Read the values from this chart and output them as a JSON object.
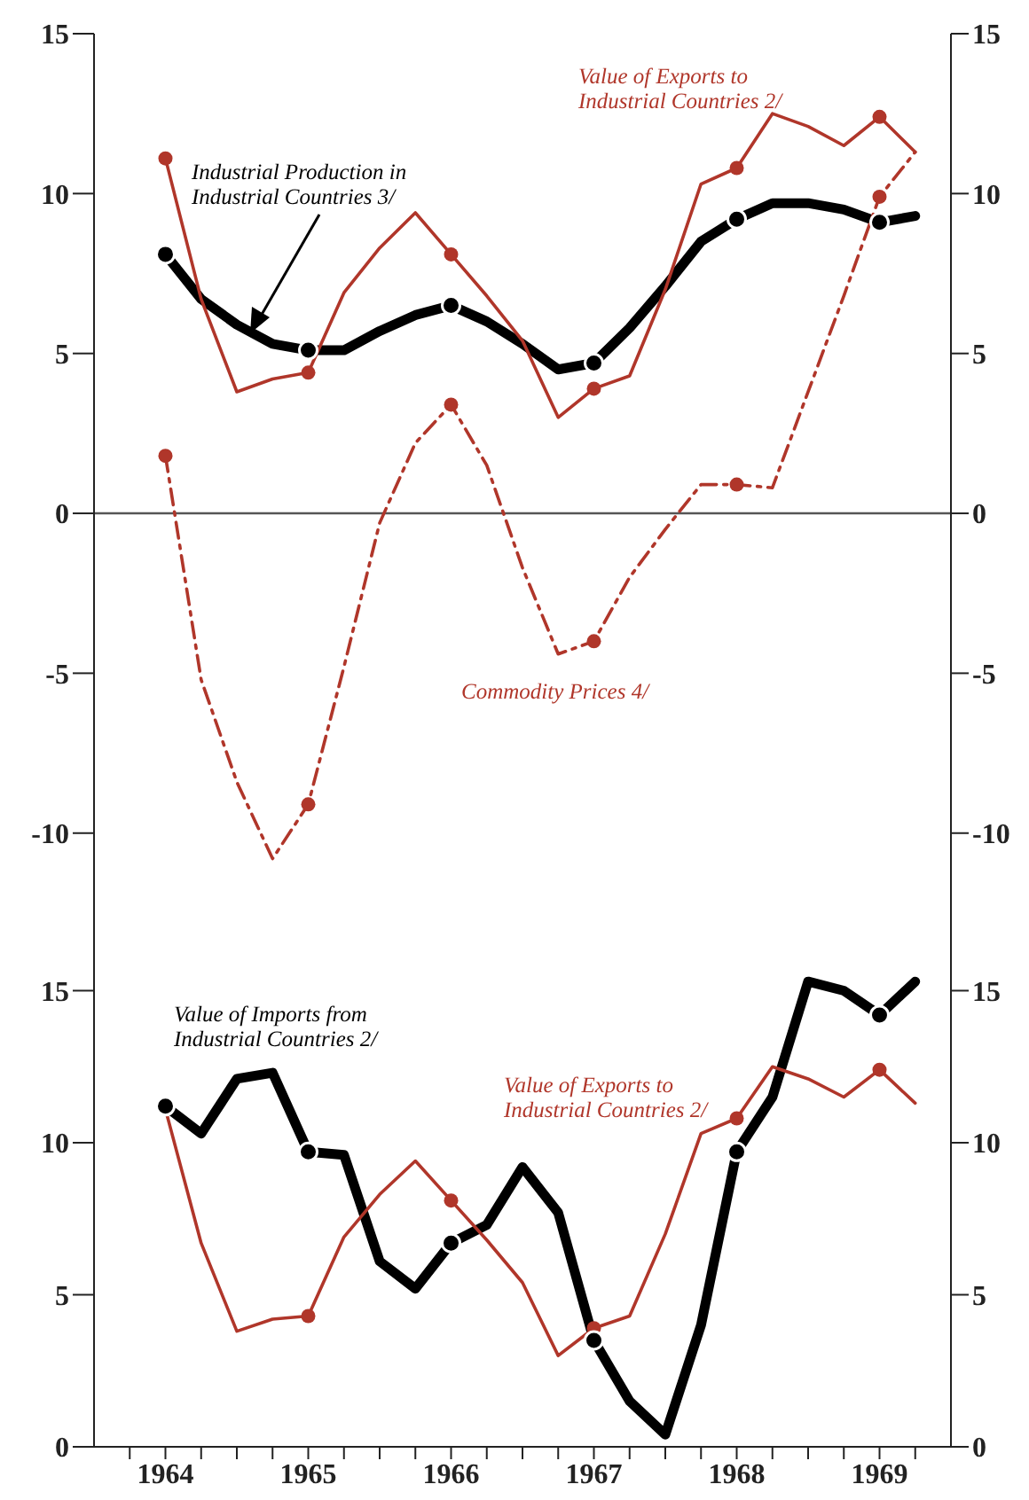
{
  "chart_data": [
    {
      "type": "line",
      "x": [
        1964,
        1964.25,
        1964.5,
        1964.75,
        1965,
        1965.25,
        1965.5,
        1965.75,
        1966,
        1966.25,
        1966.5,
        1966.75,
        1967,
        1967.25,
        1967.5,
        1967.75,
        1968,
        1968.25,
        1968.5,
        1968.75,
        1969,
        1969.25
      ],
      "series": [
        {
          "name": "Industrial Production in Industrial Countries 3/",
          "color": "#000000",
          "values": [
            8.1,
            6.7,
            5.9,
            5.3,
            5.1,
            5.1,
            5.7,
            6.2,
            6.5,
            6.0,
            5.3,
            4.5,
            4.7,
            5.8,
            7.1,
            8.5,
            9.2,
            9.7,
            9.7,
            9.5,
            9.1,
            9.3
          ]
        },
        {
          "name": "Value of Exports to Industrial Countries 2/",
          "color": "#b0362a",
          "values": [
            11.1,
            6.7,
            3.8,
            4.2,
            4.4,
            6.9,
            8.3,
            9.4,
            8.1,
            6.8,
            5.4,
            3.0,
            3.9,
            4.3,
            7.0,
            10.3,
            10.8,
            12.5,
            12.1,
            11.5,
            12.4,
            11.3
          ]
        },
        {
          "name": "Commodity Prices 4/",
          "color": "#b0362a",
          "line_style": "dashed",
          "values": [
            1.8,
            -5.2,
            -8.4,
            -10.8,
            -9.1,
            -4.8,
            -0.3,
            2.2,
            3.4,
            1.5,
            -1.7,
            -4.4,
            -4.0,
            -2.0,
            -0.5,
            0.9,
            0.9,
            0.8,
            3.8,
            6.8,
            9.9,
            11.3
          ]
        },
        {
          "type": "scatter",
          "color": "#000000",
          "marker": "circle",
          "x": [
            1964,
            1965,
            1966,
            1967,
            1968,
            1969
          ],
          "values": [
            8.1,
            5.1,
            6.5,
            4.7,
            9.2,
            9.1
          ]
        },
        {
          "type": "scatter",
          "color": "#b0362a",
          "marker": "circle",
          "x": [
            1964,
            1965,
            1966,
            1967,
            1968,
            1969
          ],
          "values": [
            11.1,
            4.4,
            8.1,
            3.9,
            10.8,
            12.4
          ]
        },
        {
          "type": "scatter",
          "color": "#b0362a",
          "marker": "circle",
          "x": [
            1964,
            1965,
            1966,
            1967,
            1968,
            1969
          ],
          "values": [
            1.8,
            -9.1,
            3.4,
            -4.0,
            0.9,
            9.9
          ]
        }
      ],
      "xlim": [
        1963.5,
        1969.5
      ],
      "ylim": [
        -13.5,
        15
      ],
      "yticks": [
        -10,
        -5,
        0,
        5,
        10,
        15
      ],
      "y2lim": [
        -13.5,
        15
      ],
      "y2ticks": [
        -10,
        -5,
        0,
        5,
        10,
        15
      ],
      "ref_lines": [
        {
          "axis": "y",
          "value": 0,
          "color": "#555555"
        }
      ],
      "line_style": "solid",
      "tick_labels": "y"
    },
    {
      "type": "line",
      "x": [
        1964,
        1964.25,
        1964.5,
        1964.75,
        1965,
        1965.25,
        1965.5,
        1965.75,
        1966,
        1966.25,
        1966.5,
        1966.75,
        1967,
        1967.25,
        1967.5,
        1967.75,
        1968,
        1968.25,
        1968.5,
        1968.75,
        1969,
        1969.25
      ],
      "series": [
        {
          "name": "Value of Imports from Industrial Countries 2/",
          "color": "#000000",
          "values": [
            11.2,
            10.3,
            12.1,
            12.3,
            9.7,
            9.6,
            6.1,
            5.2,
            6.7,
            7.3,
            9.2,
            7.7,
            3.5,
            1.5,
            0.4,
            4.0,
            9.7,
            11.5,
            15.3,
            15.0,
            14.2,
            15.3
          ]
        },
        {
          "name": "Value of Exports to Industrial Countries 2/",
          "color": "#b0362a",
          "values": [
            11.1,
            6.7,
            3.8,
            4.2,
            4.3,
            6.9,
            8.3,
            9.4,
            8.1,
            6.8,
            5.4,
            3.0,
            3.9,
            4.3,
            7.0,
            10.3,
            10.8,
            12.5,
            12.1,
            11.5,
            12.4,
            11.3
          ]
        },
        {
          "type": "scatter",
          "color": "#b0362a",
          "marker": "circle",
          "x": [
            1965,
            1966,
            1967,
            1968,
            1969
          ],
          "values": [
            4.3,
            8.1,
            3.9,
            10.8,
            12.4
          ]
        },
        {
          "type": "scatter",
          "color": "#000000",
          "marker": "circle",
          "x": [
            1964,
            1965,
            1966,
            1967,
            1968,
            1969
          ],
          "values": [
            11.2,
            9.7,
            6.7,
            3.5,
            9.7,
            14.2
          ]
        }
      ],
      "xlim": [
        1963.5,
        1969.5
      ],
      "xticks": [
        {
          "value": 1963.75,
          "label": null
        },
        1964,
        {
          "value": 1964.25,
          "label": null
        },
        {
          "value": 1964.5,
          "label": null
        },
        {
          "value": 1964.75,
          "label": null
        },
        1965,
        {
          "value": 1965.25,
          "label": null
        },
        {
          "value": 1965.5,
          "label": null
        },
        {
          "value": 1965.75,
          "label": null
        },
        1966,
        {
          "value": 1966.25,
          "label": null
        },
        {
          "value": 1966.5,
          "label": null
        },
        {
          "value": 1966.75,
          "label": null
        },
        1967,
        {
          "value": 1967.25,
          "label": null
        },
        {
          "value": 1967.5,
          "label": null
        },
        {
          "value": 1967.75,
          "label": null
        },
        1968,
        {
          "value": 1968.25,
          "label": null
        },
        {
          "value": 1968.5,
          "label": null
        },
        {
          "value": 1968.75,
          "label": null
        },
        1969,
        {
          "value": 1969.25,
          "label": null
        }
      ],
      "ylim": [
        0,
        16.5
      ],
      "yticks": [
        0,
        5,
        10,
        15
      ],
      "y2lim": [
        0,
        16.5
      ],
      "y2ticks": [
        0,
        5,
        10,
        15
      ],
      "line_style": "solid"
    }
  ]
}
